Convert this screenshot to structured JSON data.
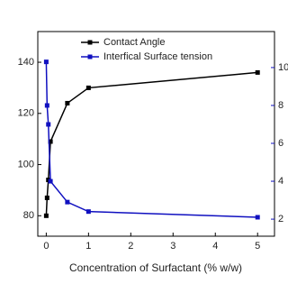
{
  "chart_data": {
    "type": "line",
    "x_label": "Concentration of Surfactant (% w/w)",
    "x": [
      0,
      0.02,
      0.05,
      0.1,
      0.5,
      1,
      5
    ],
    "xlim": [
      -0.2,
      5.4
    ],
    "xticks": [
      0,
      1,
      2,
      3,
      4,
      5
    ],
    "ylim": [
      72,
      152
    ],
    "yticks": [
      80,
      100,
      120,
      140
    ],
    "y2lim": [
      1.1,
      11.9
    ],
    "y2ticks": [
      2,
      4,
      6,
      8,
      10
    ],
    "legend": "upper center",
    "series": [
      {
        "name": "Contact Angle",
        "color": "#000000",
        "values": [
          80,
          87,
          94,
          109,
          124,
          130,
          136
        ]
      },
      {
        "name": "Interfical Surface tension",
        "color": "#1010c0",
        "axis": "y2",
        "values": [
          10.3,
          8.0,
          7.0,
          4.0,
          2.9,
          2.4,
          2.1
        ]
      }
    ]
  }
}
